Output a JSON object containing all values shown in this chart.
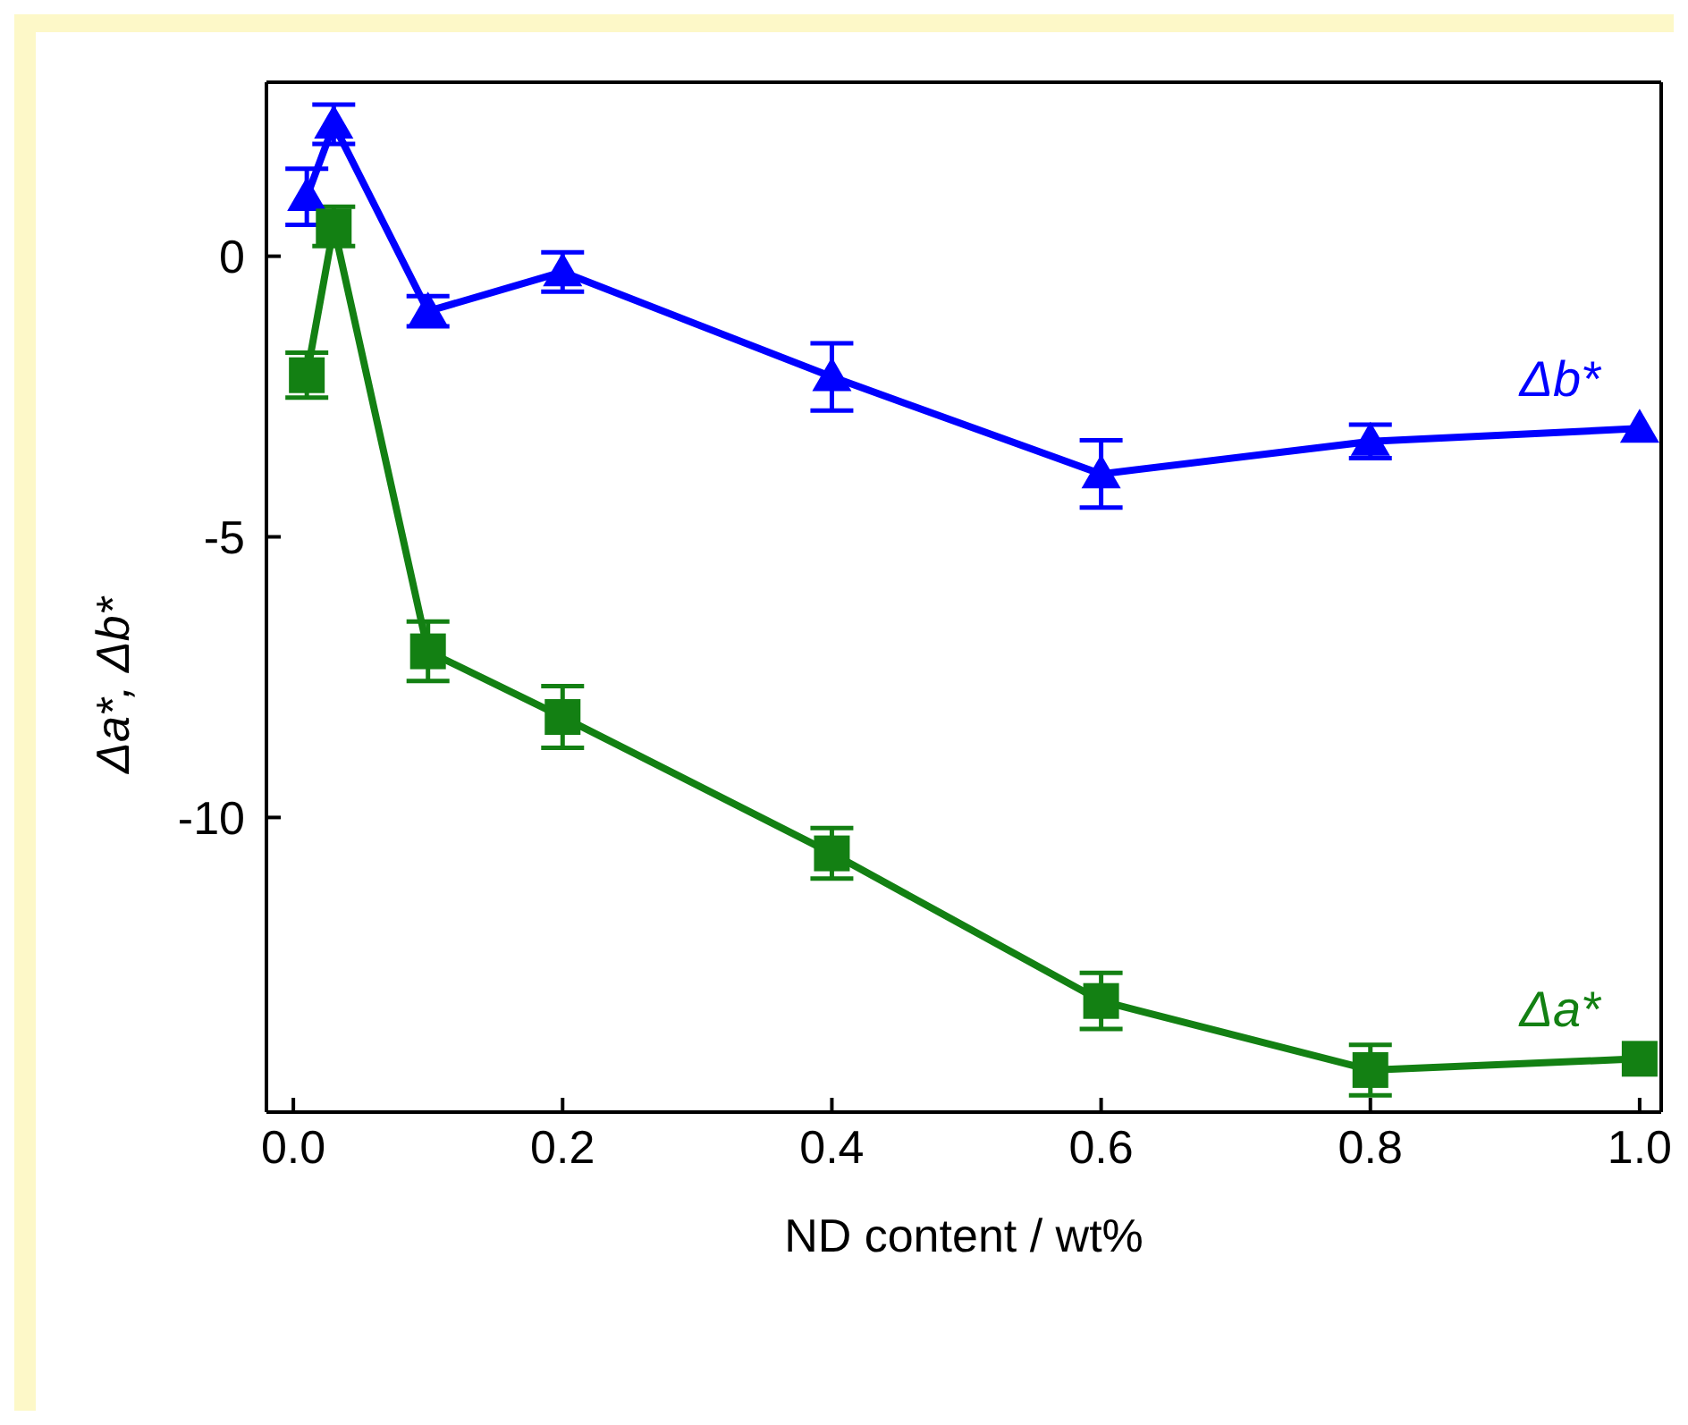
{
  "chart_data": {
    "type": "line",
    "xlabel": "ND content / wt%",
    "ylabel": "Δa*, Δb*",
    "x": [
      0.01,
      0.03,
      0.1,
      0.2,
      0.4,
      0.6,
      0.8,
      1.0
    ],
    "series": [
      {
        "name": "Δb*",
        "color": "#0000ff",
        "marker": "triangle",
        "values": [
          1.06,
          2.35,
          -0.98,
          -0.28,
          -2.15,
          -3.88,
          -3.3,
          -3.07
        ],
        "errors": [
          0.5,
          0.35,
          0.27,
          0.35,
          0.6,
          0.6,
          0.3,
          null
        ]
      },
      {
        "name": "Δa*",
        "color": "#138013",
        "marker": "square",
        "values": [
          -2.12,
          0.53,
          -7.04,
          -8.21,
          -10.64,
          -13.27,
          -14.5,
          -14.3
        ],
        "errors": [
          0.4,
          0.35,
          0.53,
          0.55,
          0.45,
          0.5,
          0.45,
          null
        ]
      }
    ],
    "xlim": [
      -0.02,
      1.016
    ],
    "xticks": [
      {
        "value": 0.0,
        "label": "0.0"
      },
      0.2,
      0.4,
      0.6,
      0.8,
      {
        "value": 1.0,
        "label": "1.0"
      }
    ],
    "ylim": [
      -15.25,
      3.1
    ],
    "yticks": [
      -10,
      -5,
      0
    ],
    "line_style": "solid"
  }
}
